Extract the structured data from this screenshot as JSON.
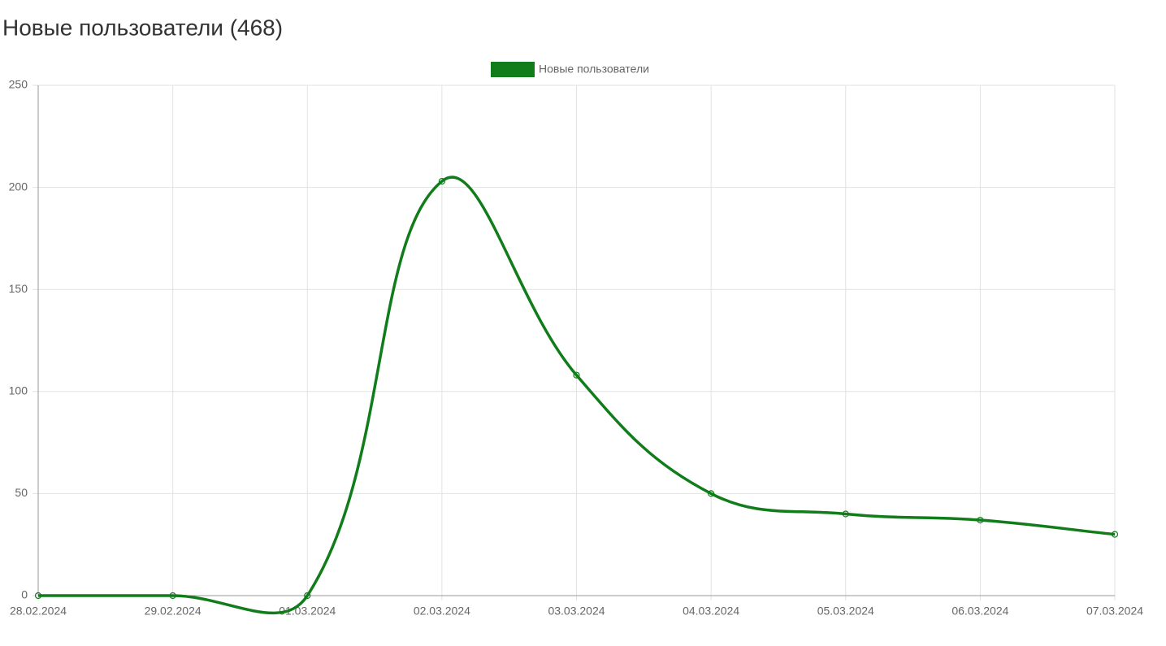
{
  "chart_data": {
    "type": "line",
    "title": "Новые пользователи (468)",
    "categories": [
      "28.02.2024",
      "29.02.2024",
      "01.03.2024",
      "02.03.2024",
      "03.03.2024",
      "04.03.2024",
      "05.03.2024",
      "06.03.2024",
      "07.03.2024"
    ],
    "series": [
      {
        "name": "Новые пользователи",
        "color": "#107c1a",
        "values": [
          0,
          0,
          0,
          203,
          108,
          50,
          40,
          37,
          30
        ]
      }
    ],
    "ylim": [
      0,
      250
    ],
    "yticks": [
      0,
      50,
      100,
      150,
      200,
      250
    ],
    "grid": true,
    "legend": "top"
  }
}
